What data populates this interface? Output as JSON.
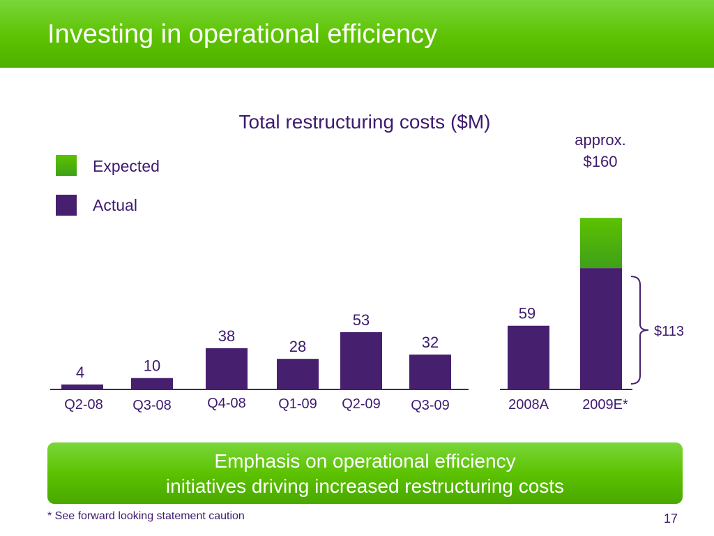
{
  "slide": {
    "title": "Investing in operational efficiency",
    "callout_line1": "Emphasis on operational efficiency",
    "callout_line2": "initiatives driving increased restructuring costs",
    "footnote": "* See forward looking statement caution",
    "page_number": "17"
  },
  "colors": {
    "actual": "#46206e",
    "expected": "#5cc200",
    "brand_green": "#5cc200",
    "text_purple": "#3d1a6e"
  },
  "chart_data": [
    {
      "type": "bar",
      "title": "Total restructuring costs ($M)",
      "legend": [
        {
          "name": "Expected",
          "color": "#5cc200"
        },
        {
          "name": "Actual",
          "color": "#46206e"
        }
      ],
      "legend_placement": "top-left",
      "grid": false,
      "categories": [
        "Q2-08",
        "Q3-08",
        "Q4-08",
        "Q1-09",
        "Q2-09",
        "Q3-09"
      ],
      "series": [
        {
          "name": "Actual",
          "values": [
            4,
            10,
            38,
            28,
            53,
            32
          ],
          "labels": [
            "4",
            "10",
            "38",
            "28",
            "53",
            "32"
          ]
        }
      ],
      "ylim": [
        0,
        165
      ]
    },
    {
      "type": "bar",
      "stacked": true,
      "categories": [
        "2008A",
        "2009E*"
      ],
      "series": [
        {
          "name": "Actual",
          "values": [
            59,
            113
          ]
        },
        {
          "name": "Expected",
          "values": [
            0,
            47
          ]
        }
      ],
      "totals": [
        59,
        160
      ],
      "total_labels": [
        "59",
        "approx.\n$160"
      ],
      "annotations": [
        {
          "text": "$113",
          "target": "2009E*",
          "series": "Actual"
        }
      ],
      "ylim": [
        0,
        165
      ]
    }
  ]
}
